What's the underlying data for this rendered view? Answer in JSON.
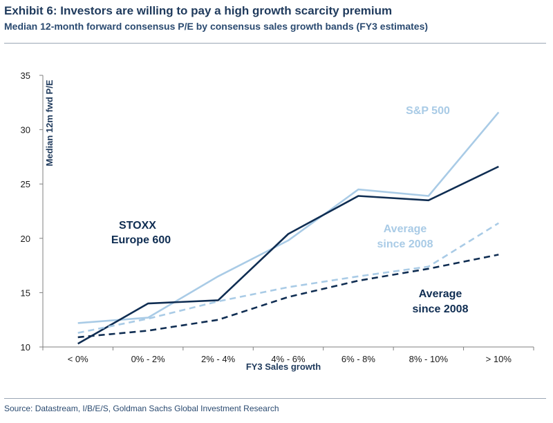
{
  "header": {
    "title": "Exhibit 6: Investors are willing to pay a high growth scarcity premium",
    "subtitle": "Median 12-month forward consensus P/E by consensus sales growth bands (FY3 estimates)"
  },
  "footer": {
    "source": "Source: Datastream, I/B/E/S, Goldman Sachs Global Investment Research"
  },
  "chart_data": {
    "type": "line",
    "categories": [
      "< 0%",
      "0% - 2%",
      "2% - 4%",
      "4% - 6%",
      "6% - 8%",
      "8% - 10%",
      "> 10%"
    ],
    "xlabel": "FY3 Sales growth",
    "ylabel": "Median 12m fwd P/E",
    "ylim": [
      10,
      35
    ],
    "yticks": [
      10,
      15,
      20,
      25,
      30,
      35
    ],
    "grid": false,
    "legend": "none",
    "series": [
      {
        "name": "S&P 500",
        "style": "solid",
        "color": "#a9cbe6",
        "values": [
          12.2,
          12.7,
          16.5,
          19.8,
          24.5,
          23.9,
          31.6
        ]
      },
      {
        "name": "STOXX Europe 600",
        "style": "solid",
        "color": "#0f2d52",
        "values": [
          10.3,
          14.0,
          14.3,
          20.4,
          23.9,
          23.5,
          26.6
        ]
      },
      {
        "name": "Average since 2008",
        "style": "dashed",
        "color": "#a9cbe6",
        "values": [
          11.3,
          12.6,
          14.2,
          15.5,
          16.5,
          17.4,
          21.4
        ]
      },
      {
        "name": "Average since 2008",
        "style": "dashed",
        "color": "#0f2d52",
        "values": [
          10.9,
          11.5,
          12.5,
          14.6,
          16.1,
          17.2,
          18.5
        ]
      }
    ],
    "annotations": [
      {
        "text": "S&P 500",
        "color": "#a9cbe6"
      },
      {
        "text": "STOXX",
        "color": "#0f2d52"
      },
      {
        "text": "Europe 600",
        "color": "#0f2d52"
      },
      {
        "text": "Average",
        "color": "#a9cbe6"
      },
      {
        "text": "since 2008",
        "color": "#a9cbe6"
      },
      {
        "text": "Average",
        "color": "#0f2d52"
      },
      {
        "text": "since 2008",
        "color": "#0f2d52"
      }
    ]
  }
}
